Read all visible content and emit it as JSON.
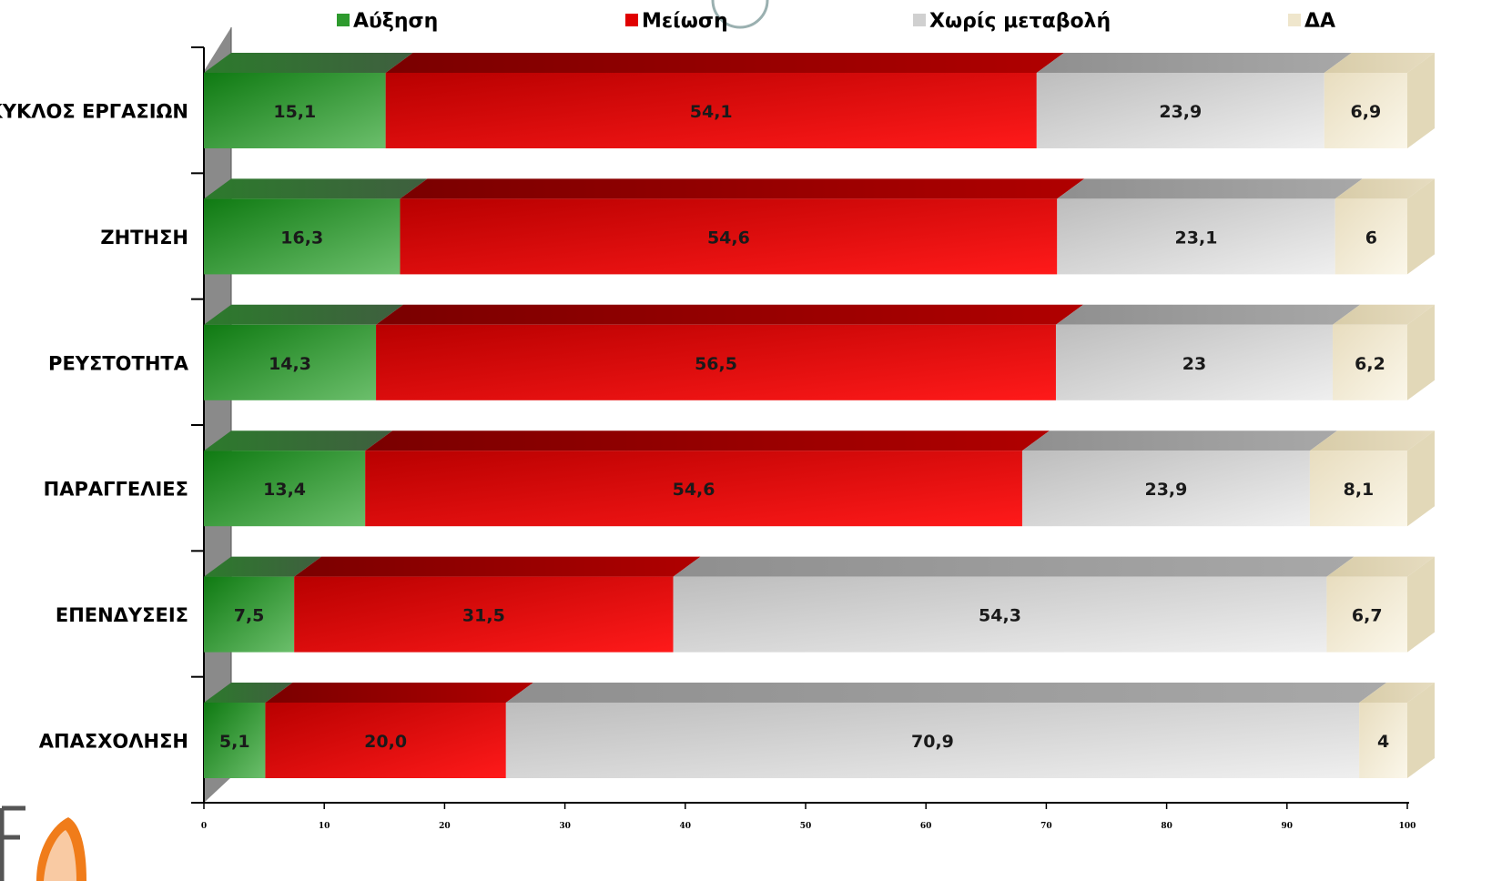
{
  "chart_data": {
    "type": "bar",
    "orientation": "horizontal",
    "stacked": true,
    "categories": [
      "ΚΥΚΛΟΣ ΕΡΓΑΣΙΩΝ",
      "ΖΗΤΗΣΗ",
      "ΡΕΥΣΤΟΤΗΤΑ",
      "ΠΑΡΑΓΓΕΛΙΕΣ",
      "ΕΠΕΝΔΥΣΕΙΣ",
      "ΑΠΑΣΧΟΛΗΣΗ"
    ],
    "series": [
      {
        "name": "Αύξηση",
        "color": "#2e9a2e",
        "values": [
          15.1,
          16.3,
          14.3,
          13.4,
          7.5,
          5.1
        ],
        "labels": [
          "15,1",
          "16,3",
          "14,3",
          "13,4",
          "7,5",
          "5,1"
        ]
      },
      {
        "name": "Μείωση",
        "color": "#e00000",
        "values": [
          54.1,
          54.6,
          56.5,
          54.6,
          31.5,
          20.0
        ],
        "labels": [
          "54,1",
          "54,6",
          "56,5",
          "54,6",
          "31,5",
          "20,0"
        ]
      },
      {
        "name": "Χωρίς μεταβολή",
        "color": "#d0d0d0",
        "values": [
          23.9,
          23.1,
          23.0,
          23.9,
          54.3,
          70.9
        ],
        "labels": [
          "23,9",
          "23,1",
          "23",
          "23,9",
          "54,3",
          "70,9"
        ]
      },
      {
        "name": "ΔΑ",
        "color": "#efe6cc",
        "values": [
          6.9,
          6.0,
          6.2,
          8.1,
          6.7,
          4.0
        ],
        "labels": [
          "6,9",
          "6",
          "6,2",
          "8,1",
          "6,7",
          "4"
        ]
      }
    ],
    "xlim": [
      0,
      100
    ],
    "xticks": [
      "0",
      "10",
      "20",
      "30",
      "40",
      "50",
      "60",
      "70",
      "80",
      "90",
      "100"
    ],
    "legend": "top",
    "grid": false
  }
}
